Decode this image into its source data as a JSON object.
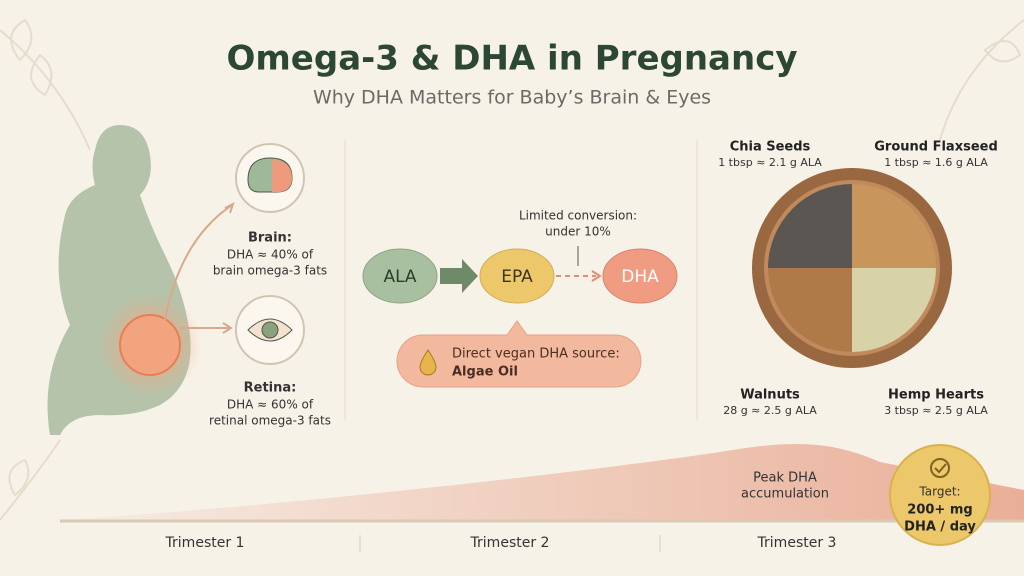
{
  "header": {
    "title": "Omega-3 & DHA in Pregnancy",
    "subtitle": "Why DHA Matters for Baby’s Brain & Eyes"
  },
  "benefits": [
    {
      "label": "Brain:",
      "lines": [
        "DHA ≈ 40% of",
        "brain omega-3 fats"
      ]
    },
    {
      "label": "Retina:",
      "lines": [
        "DHA ≈ 60% of",
        "retinal omega-3 fats"
      ]
    }
  ],
  "pathway": {
    "nodes": [
      "ALA",
      "EPA",
      "DHA"
    ],
    "note": [
      "Limited conversion:",
      "under 10%"
    ],
    "callout": [
      "Direct vegan DHA source:",
      "Algae Oil"
    ]
  },
  "foods": [
    {
      "name": "Chia Seeds",
      "amount": "1 tbsp ≈ 2.1 g ALA"
    },
    {
      "name": "Ground Flaxseed",
      "amount": "1 tbsp ≈ 1.6 g ALA"
    },
    {
      "name": "Walnuts",
      "amount": "28 g ≈ 2.5 g ALA"
    },
    {
      "name": "Hemp Hearts",
      "amount": "3 tbsp ≈ 2.5 g ALA"
    }
  ],
  "timeline": {
    "peak": [
      "Peak DHA",
      "accumulation"
    ],
    "trimesters": [
      "Trimester 1",
      "Trimester 2",
      "Trimester 3"
    ],
    "target": [
      "Target:",
      "200+ mg",
      "DHA / day"
    ]
  }
}
